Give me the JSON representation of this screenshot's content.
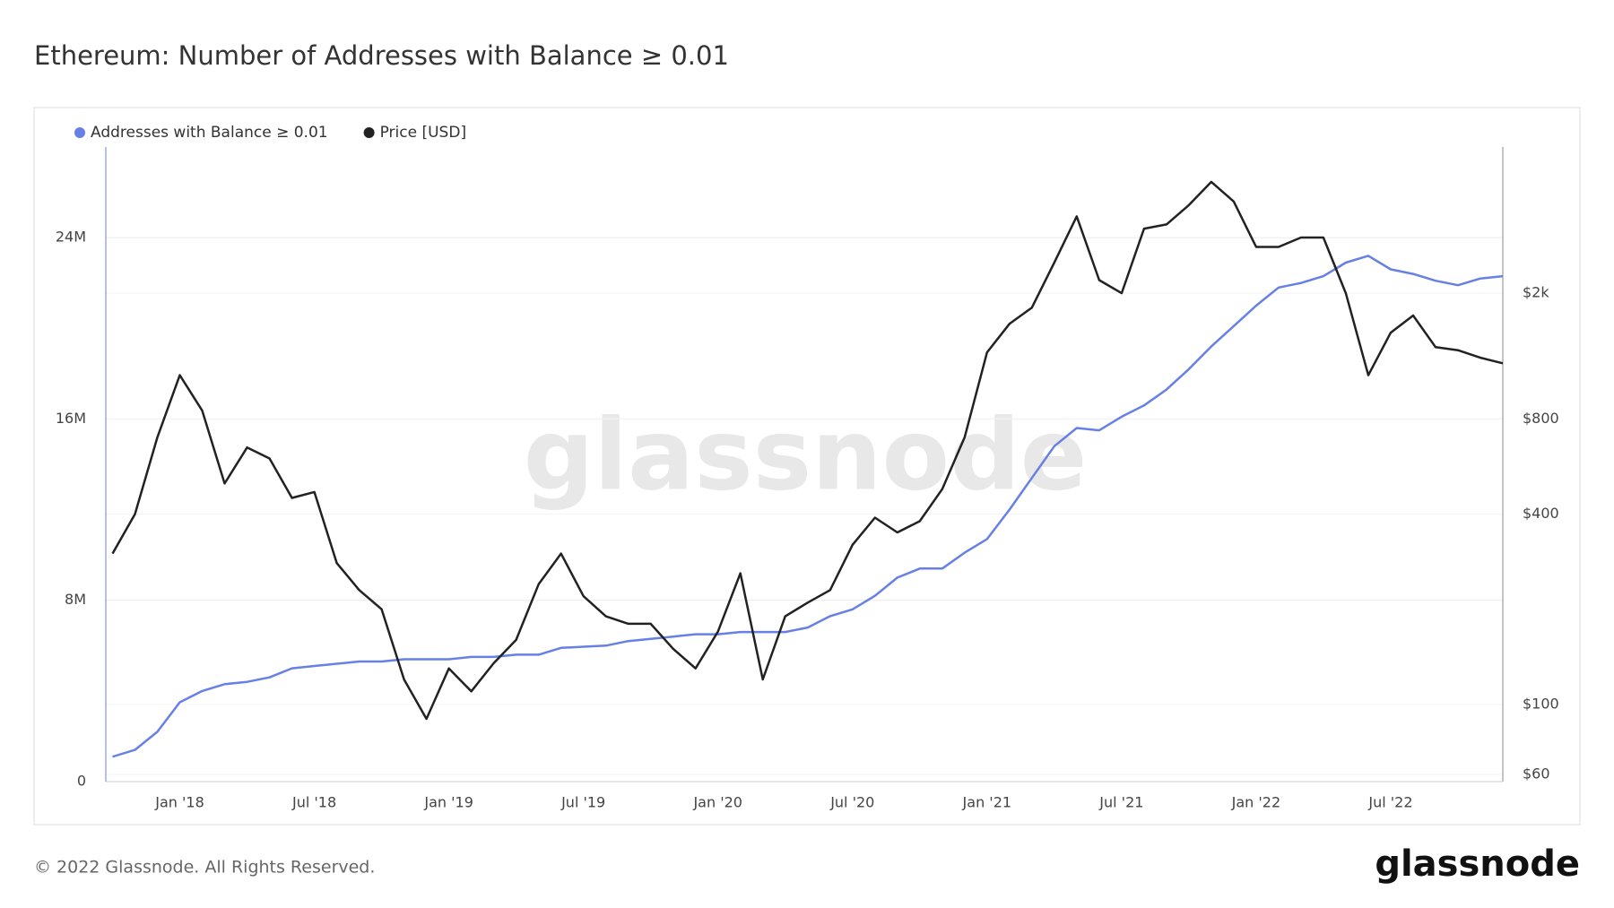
{
  "chart_data": {
    "type": "line",
    "title": "Ethereum: Number of Addresses with Balance ≥ 0.01",
    "categories": [
      null,
      null,
      null,
      "Jan '18",
      null,
      null,
      null,
      null,
      null,
      "Jul '18",
      null,
      null,
      null,
      null,
      null,
      "Jan '19",
      null,
      null,
      null,
      null,
      null,
      "Jul '19",
      null,
      null,
      null,
      null,
      null,
      "Jan '20",
      null,
      null,
      null,
      null,
      null,
      "Jul '20",
      null,
      null,
      null,
      null,
      null,
      "Jan '21",
      null,
      null,
      null,
      null,
      null,
      "Jul '21",
      null,
      null,
      null,
      null,
      null,
      "Jan '22",
      null,
      null,
      null,
      null,
      null,
      "Jul '22",
      null,
      null,
      null,
      null,
      null
    ],
    "series": [
      {
        "name": "Addresses with Balance ≥ 0.01",
        "color": "#6780e6",
        "axis": "y",
        "values": [
          1100000,
          1400000,
          2200000,
          3500000,
          4000000,
          4300000,
          4400000,
          4600000,
          5000000,
          5100000,
          5200000,
          5300000,
          5300000,
          5400000,
          5400000,
          5400000,
          5500000,
          5500000,
          5600000,
          5600000,
          5900000,
          5950000,
          6000000,
          6200000,
          6300000,
          6400000,
          6500000,
          6500000,
          6600000,
          6600000,
          6600000,
          6800000,
          7300000,
          7600000,
          8200000,
          9000000,
          9400000,
          9400000,
          10100000,
          10700000,
          12000000,
          13400000,
          14800000,
          15600000,
          15500000,
          16100000,
          16600000,
          17300000,
          18200000,
          19200000,
          20100000,
          21000000,
          21800000,
          22000000,
          22300000,
          22900000,
          23200000,
          22600000,
          22400000,
          22100000,
          21900000,
          22200000,
          22300000
        ]
      },
      {
        "name": "Price [USD]",
        "color": "#222222",
        "axis": "y2",
        "values": [
          300,
          400,
          700,
          1100,
          850,
          500,
          650,
          600,
          450,
          470,
          280,
          230,
          200,
          120,
          90,
          130,
          110,
          135,
          160,
          240,
          300,
          220,
          190,
          180,
          180,
          150,
          130,
          170,
          260,
          120,
          190,
          210,
          230,
          320,
          390,
          350,
          380,
          480,
          700,
          1300,
          1600,
          1800,
          2500,
          3500,
          2200,
          2000,
          3200,
          3300,
          3800,
          4500,
          3900,
          2800,
          2800,
          3000,
          3000,
          2000,
          1100,
          1500,
          1700,
          1350,
          1320,
          1250,
          1200
        ]
      }
    ],
    "ylim": [
      0,
      28000000
    ],
    "yticks": [
      {
        "value": 0,
        "label": "0"
      },
      {
        "value": 8000000,
        "label": "8M"
      },
      {
        "value": 16000000,
        "label": "16M"
      },
      {
        "value": 24000000,
        "label": "24M"
      }
    ],
    "y2lim": [
      57,
      5800
    ],
    "y2log": true,
    "y2ticks": [
      {
        "value": 60,
        "label": "$60"
      },
      {
        "value": 100,
        "label": "$100"
      },
      {
        "value": 400,
        "label": "$400"
      },
      {
        "value": 800,
        "label": "$800"
      },
      {
        "value": 2000,
        "label": "$2k"
      }
    ],
    "grid": true,
    "legend": "top-left"
  },
  "watermark": "glassnode",
  "footer": "© 2022 Glassnode. All Rights Reserved.",
  "logo": "glassnode"
}
